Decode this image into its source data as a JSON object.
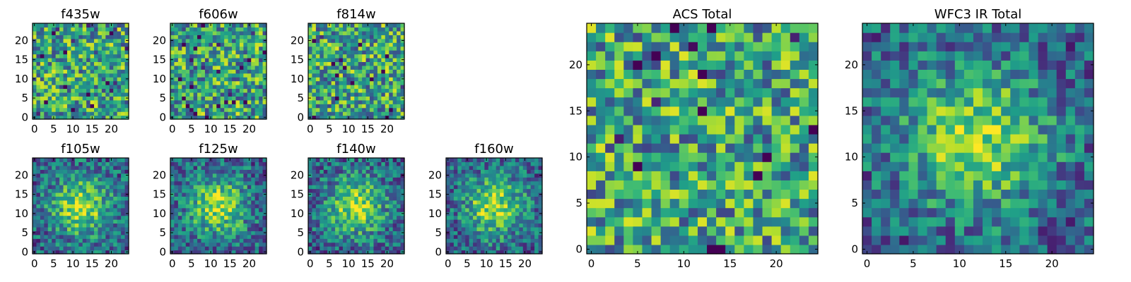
{
  "chart_data": [
    {
      "type": "heatmap",
      "title": "f435w",
      "xlim": [
        0,
        24
      ],
      "ylim": [
        0,
        24
      ],
      "xticks": [
        0,
        5,
        10,
        15,
        20
      ],
      "yticks": [
        0,
        5,
        10,
        15,
        20
      ],
      "pattern": "noise",
      "seed": 11,
      "colormap": "viridis"
    },
    {
      "type": "heatmap",
      "title": "f606w",
      "xlim": [
        0,
        24
      ],
      "ylim": [
        0,
        24
      ],
      "xticks": [
        0,
        5,
        10,
        15,
        20
      ],
      "yticks": [
        0,
        5,
        10,
        15,
        20
      ],
      "pattern": "noise",
      "seed": 23,
      "colormap": "viridis"
    },
    {
      "type": "heatmap",
      "title": "f814w",
      "xlim": [
        0,
        24
      ],
      "ylim": [
        0,
        24
      ],
      "xticks": [
        0,
        5,
        10,
        15,
        20
      ],
      "yticks": [
        0,
        5,
        10,
        15,
        20
      ],
      "pattern": "noise",
      "seed": 37,
      "colormap": "viridis"
    },
    {
      "type": "heatmap",
      "title": "f105w",
      "xlim": [
        0,
        24
      ],
      "ylim": [
        0,
        24
      ],
      "xticks": [
        0,
        5,
        10,
        15,
        20
      ],
      "yticks": [
        0,
        5,
        10,
        15,
        20
      ],
      "pattern": "blob",
      "seed": 41,
      "colormap": "viridis"
    },
    {
      "type": "heatmap",
      "title": "f125w",
      "xlim": [
        0,
        24
      ],
      "ylim": [
        0,
        24
      ],
      "xticks": [
        0,
        5,
        10,
        15,
        20
      ],
      "yticks": [
        0,
        5,
        10,
        15,
        20
      ],
      "pattern": "blob",
      "seed": 53,
      "colormap": "viridis"
    },
    {
      "type": "heatmap",
      "title": "f140w",
      "xlim": [
        0,
        24
      ],
      "ylim": [
        0,
        24
      ],
      "xticks": [
        0,
        5,
        10,
        15,
        20
      ],
      "yticks": [
        0,
        5,
        10,
        15,
        20
      ],
      "pattern": "blob",
      "seed": 67,
      "colormap": "viridis"
    },
    {
      "type": "heatmap",
      "title": "f160w",
      "xlim": [
        0,
        24
      ],
      "ylim": [
        0,
        24
      ],
      "xticks": [
        0,
        5,
        10,
        15,
        20
      ],
      "yticks": [
        0,
        5,
        10,
        15,
        20
      ],
      "pattern": "blob",
      "seed": 79,
      "colormap": "viridis"
    },
    {
      "type": "heatmap",
      "title": "ACS Total",
      "xlim": [
        0,
        24
      ],
      "ylim": [
        0,
        24
      ],
      "xticks": [
        0,
        5,
        10,
        15,
        20
      ],
      "yticks": [
        0,
        5,
        10,
        15,
        20
      ],
      "pattern": "noise",
      "seed": 97,
      "colormap": "viridis"
    },
    {
      "type": "heatmap",
      "title": "WFC3 IR Total",
      "xlim": [
        0,
        24
      ],
      "ylim": [
        0,
        24
      ],
      "xticks": [
        0,
        5,
        10,
        15,
        20
      ],
      "yticks": [
        0,
        5,
        10,
        15,
        20
      ],
      "pattern": "blob",
      "seed": 131,
      "colormap": "viridis"
    }
  ]
}
